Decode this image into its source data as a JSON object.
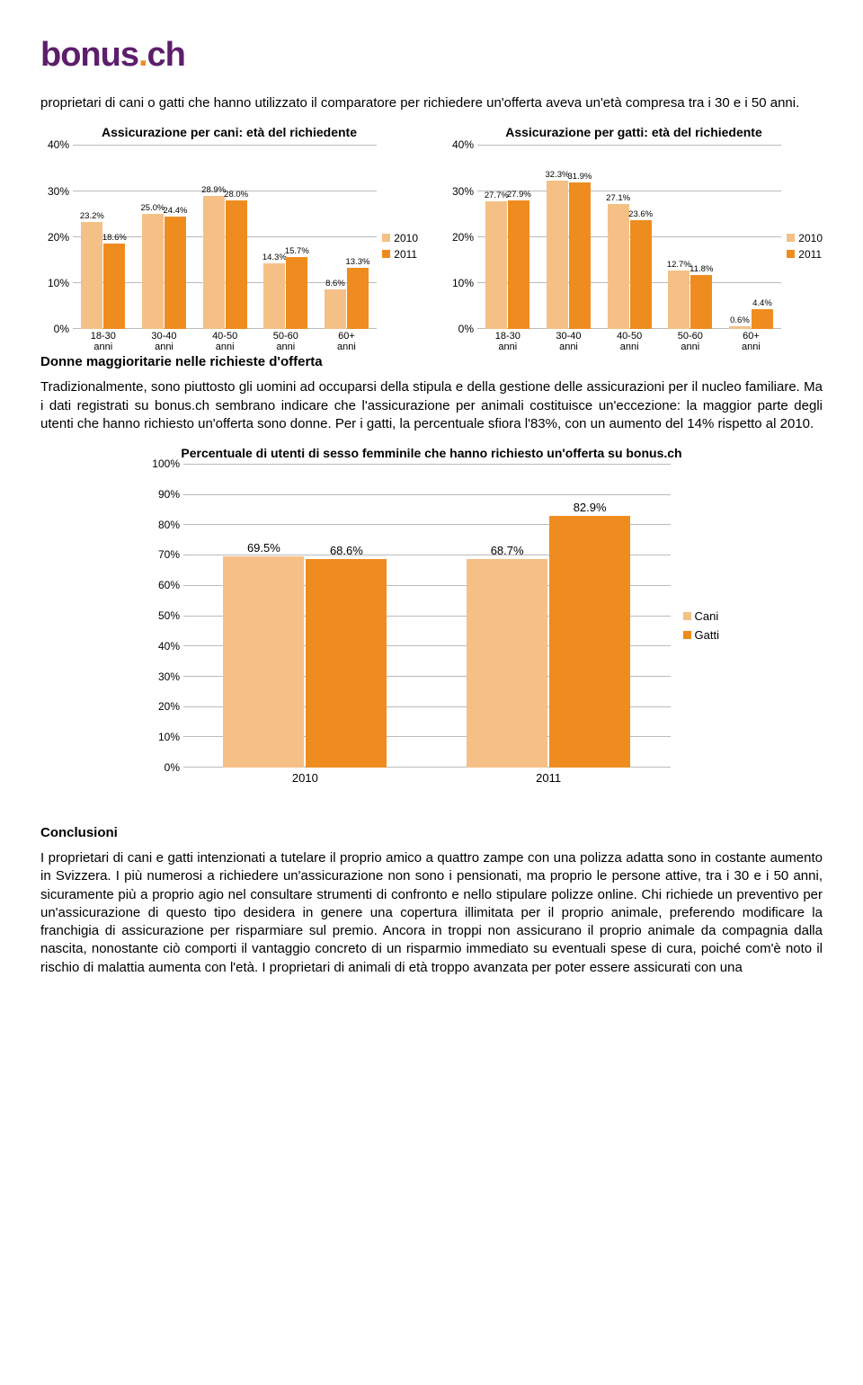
{
  "logo": {
    "part1": "bonus",
    "dot": ".",
    "part2": "ch"
  },
  "colors": {
    "light": "#f5c086",
    "dark": "#ef8c1f",
    "grid": "#bbbbbb",
    "axis": "#888888",
    "text": "#000000",
    "bg": "#ffffff"
  },
  "intro_para": "proprietari di cani o gatti che hanno utilizzato il comparatore per richiedere un'offerta aveva un'età compresa tra i 30 e i 50 anni.",
  "chart_cani": {
    "type": "grouped-bar",
    "title": "Assicurazione per cani: età del richiedente",
    "ymax": 40,
    "ytick": 10,
    "ysuffix": "%",
    "categories": [
      "18-30\nanni",
      "30-40\nanni",
      "40-50\nanni",
      "50-60\nanni",
      "60+\nanni"
    ],
    "series": [
      {
        "name": "2010",
        "color": "#f5c086",
        "values": [
          23.2,
          25.0,
          28.9,
          14.3,
          8.6
        ],
        "labels": [
          "23.2%",
          "25.0%",
          "28.9%",
          "14.3%",
          "8.6%"
        ]
      },
      {
        "name": "2011",
        "color": "#ef8c1f",
        "values": [
          18.6,
          24.4,
          28.0,
          15.7,
          13.3
        ],
        "labels": [
          "18.6%",
          "24.4%",
          "28.0%",
          "15.7%",
          "13.3%"
        ]
      }
    ]
  },
  "chart_gatti": {
    "type": "grouped-bar",
    "title": "Assicurazione per gatti: età del richiedente",
    "ymax": 40,
    "ytick": 10,
    "ysuffix": "%",
    "categories": [
      "18-30\nanni",
      "30-40\nanni",
      "40-50\nanni",
      "50-60\nanni",
      "60+\nanni"
    ],
    "series": [
      {
        "name": "2010",
        "color": "#f5c086",
        "values": [
          27.7,
          32.3,
          27.1,
          12.7,
          0.6
        ],
        "labels": [
          "27.7%",
          "32.3%",
          "27.1%",
          "12.7%",
          "0.6%"
        ]
      },
      {
        "name": "2011",
        "color": "#ef8c1f",
        "values": [
          27.9,
          31.9,
          23.6,
          11.8,
          4.4
        ],
        "labels": [
          "27.9%",
          "31.9%",
          "23.6%",
          "11.8%",
          "4.4%"
        ]
      }
    ],
    "extra_label": {
      "text": "27.9%",
      "after_series0_bar": 2
    }
  },
  "section_heading": "Donne maggioritarie nelle richieste d'offerta",
  "para2": "Tradizionalmente, sono piuttosto gli uomini ad occuparsi della stipula e della gestione delle assicurazioni per il nucleo familiare. Ma i dati registrati su bonus.ch sembrano indicare che l'assicurazione per animali costituisce un'eccezione: la maggior parte degli utenti che hanno richiesto un'offerta sono donne. Per i gatti, la percentuale sfiora l'83%, con un aumento del 14% rispetto al 2010.",
  "chart_donne": {
    "type": "grouped-bar",
    "title": "Percentuale di utenti di sesso femminile che hanno richiesto un'offerta su bonus.ch",
    "ymax": 100,
    "ytick": 10,
    "ysuffix": "%",
    "categories": [
      "2010",
      "2011"
    ],
    "series": [
      {
        "name": "Cani",
        "color": "#f5c086",
        "values": [
          69.5,
          68.7
        ],
        "labels": [
          "69.5%",
          "68.7%"
        ]
      },
      {
        "name": "Gatti",
        "color": "#ef8c1f",
        "values": [
          68.6,
          82.9
        ],
        "labels": [
          "68.6%",
          "82.9%"
        ]
      }
    ]
  },
  "conclusioni_h": "Conclusioni",
  "conclusioni_p": "I proprietari di cani e gatti intenzionati a tutelare il proprio amico a quattro zampe con una polizza adatta sono in costante aumento in Svizzera. I più numerosi a richiedere un'assicurazione non sono i pensionati, ma proprio le persone attive, tra i 30 e i 50 anni, sicuramente più a proprio agio nel consultare strumenti di confronto e nello stipulare polizze online. Chi richiede un preventivo per un'assicurazione di questo tipo desidera in genere una copertura illimitata per il proprio animale, preferendo modificare la franchigia di assicurazione per risparmiare sul premio. Ancora in troppi non assicurano il proprio animale da compagnia dalla nascita, nonostante ciò comporti il vantaggio concreto di un risparmio immediato su eventuali spese di cura, poiché com'è noto il rischio di malattia aumenta con l'età. I proprietari di animali di età troppo avanzata per poter essere assicurati con una"
}
